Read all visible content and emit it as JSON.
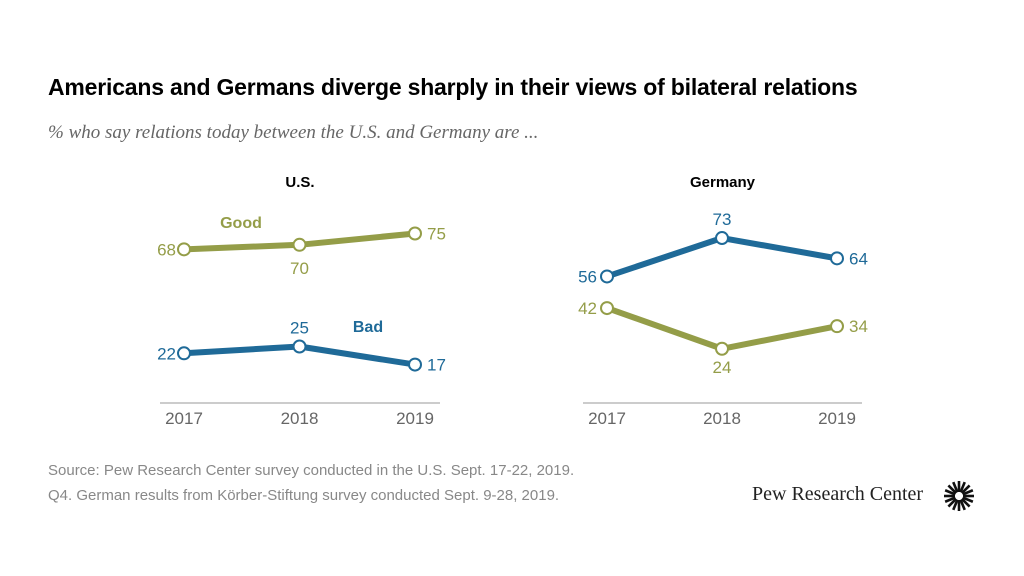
{
  "title": "Americans and Germans diverge sharply in their views of bilateral relations",
  "subtitle": "% who say relations today between the U.S. and Germany are ...",
  "source": "Source: Pew Research Center survey conducted in the U.S. Sept. 17-22, 2019.",
  "note": "Q4. German results from Körber-Stiftung survey conducted Sept. 9-28, 2019.",
  "logo": "Pew Research Center",
  "colors": {
    "good": "#949d48",
    "bad": "#1f6a98"
  },
  "chart_data": [
    {
      "type": "line",
      "title": "U.S.",
      "categories": [
        "2017",
        "2018",
        "2019"
      ],
      "ylim": [
        0,
        100
      ],
      "grid": false,
      "series": [
        {
          "name": "Good",
          "values": [
            68,
            70,
            75
          ]
        },
        {
          "name": "Bad",
          "values": [
            22,
            25,
            17
          ]
        }
      ]
    },
    {
      "type": "line",
      "title": "Germany",
      "categories": [
        "2017",
        "2018",
        "2019"
      ],
      "ylim": [
        0,
        100
      ],
      "grid": false,
      "series": [
        {
          "name": "",
          "values": [
            56,
            73,
            64
          ]
        },
        {
          "name": "",
          "values": [
            42,
            24,
            34
          ]
        }
      ]
    }
  ]
}
